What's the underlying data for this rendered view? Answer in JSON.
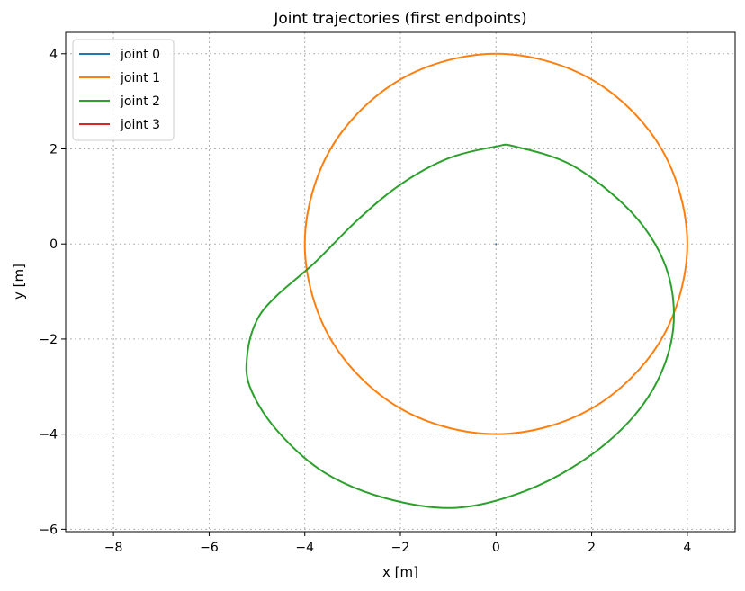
{
  "chart_data": {
    "type": "line",
    "title": "Joint trajectories (first endpoints)",
    "xlabel": "x [m]",
    "ylabel": "y [m]",
    "xlim": [
      -9,
      5
    ],
    "ylim": [
      -6.05,
      4.45
    ],
    "xticks": [
      -8,
      -6,
      -4,
      -2,
      0,
      2,
      4
    ],
    "yticks": [
      -6,
      -4,
      -2,
      0,
      2,
      4
    ],
    "xtick_labels": [
      "−8",
      "−6",
      "−4",
      "−2",
      "0",
      "2",
      "4"
    ],
    "ytick_labels": [
      "−6",
      "−4",
      "−2",
      "0",
      "2",
      "4"
    ],
    "grid": true,
    "grid_style": "dotted",
    "legend_position": "upper-left",
    "series": [
      {
        "name": "joint 0",
        "color": "#1f77b4",
        "x": [
          0
        ],
        "y": [
          0
        ]
      },
      {
        "name": "joint 1",
        "color": "#ff7f0e",
        "x": [
          4,
          3.46,
          2,
          0,
          -2,
          -3.46,
          -4,
          -3.46,
          -2,
          0,
          2,
          3.46,
          4
        ],
        "y": [
          0,
          2,
          3.46,
          4,
          3.46,
          2,
          0,
          -2,
          -3.46,
          -4,
          -3.46,
          -2,
          0
        ]
      },
      {
        "name": "joint 2",
        "color": "#2ca02c",
        "x": [
          0.4,
          1.6,
          2.8,
          3.5,
          3.72,
          3.5,
          2.9,
          1.9,
          0.6,
          -0.85,
          -2.3,
          -3.6,
          -4.6,
          -5.15,
          -5.2,
          -5.0,
          -4.6,
          -3.8,
          -2.9,
          -2.0,
          -1.0,
          0.0,
          0.4
        ],
        "y": [
          2.05,
          1.65,
          0.7,
          -0.35,
          -1.5,
          -2.6,
          -3.6,
          -4.5,
          -5.2,
          -5.55,
          -5.35,
          -4.8,
          -3.9,
          -3.0,
          -2.3,
          -1.6,
          -1.1,
          -0.4,
          0.5,
          1.25,
          1.8,
          2.05,
          2.05
        ]
      },
      {
        "name": "joint 3",
        "color": "#d62728",
        "x": [],
        "y": []
      }
    ]
  }
}
